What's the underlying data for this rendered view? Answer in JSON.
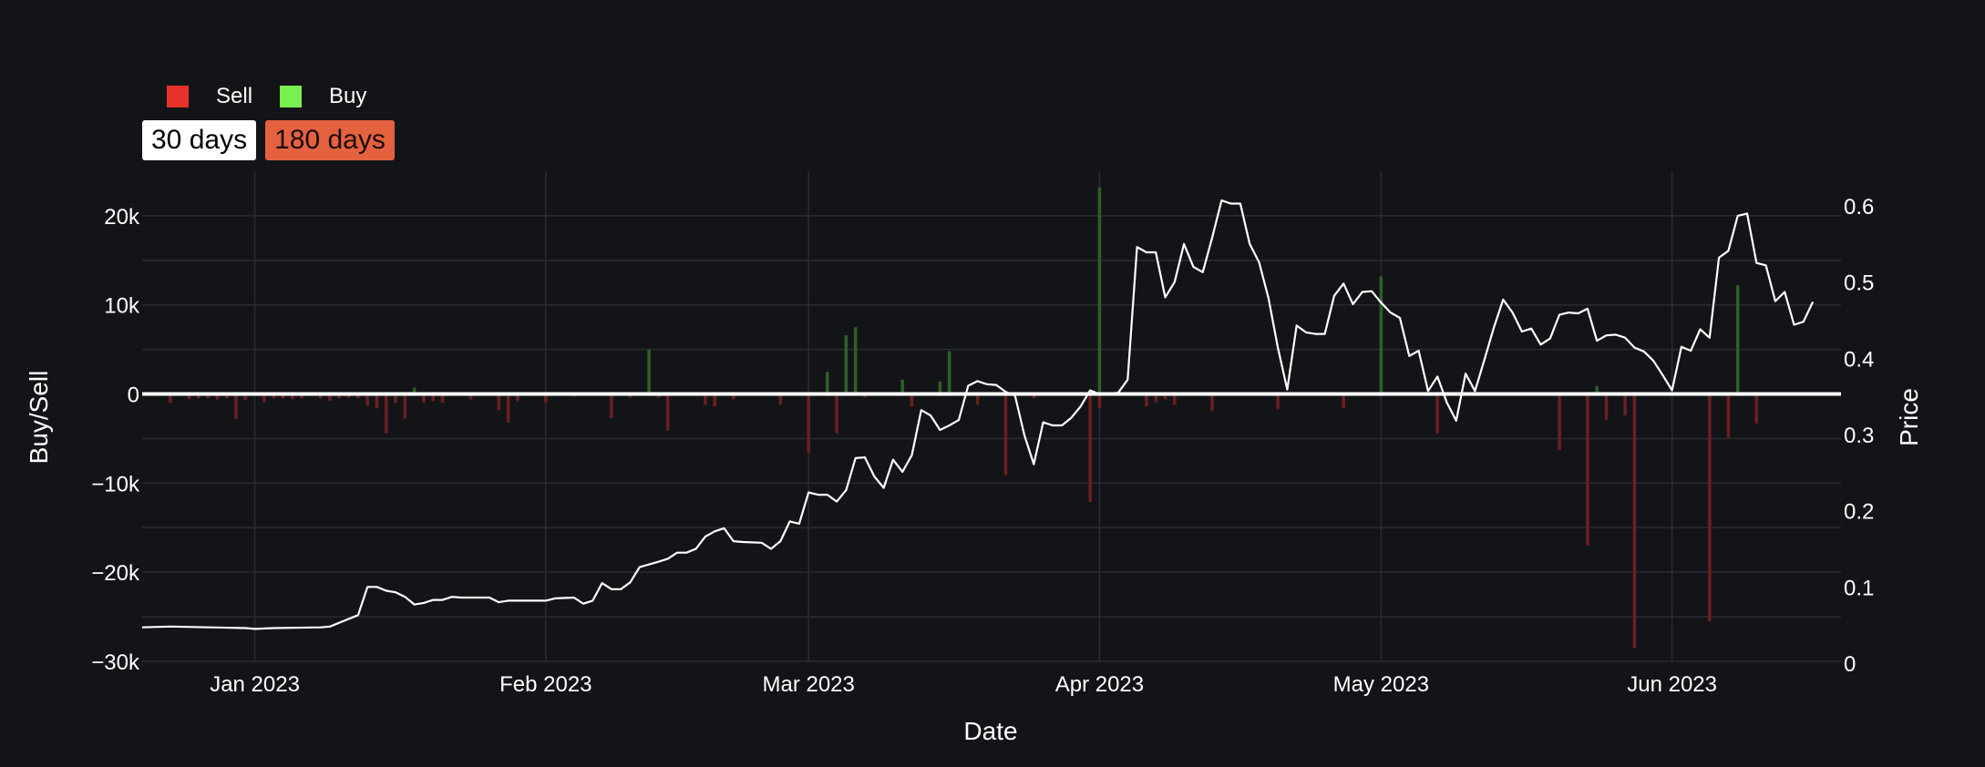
{
  "legend": {
    "sell_label": "Sell",
    "buy_label": "Buy",
    "sell_color": "#e8332a",
    "buy_color": "#79f04f"
  },
  "range_buttons": {
    "b30": "30 days",
    "b180": "180 days",
    "active_color": "#ffffff",
    "inactive_color": "#e4623f"
  },
  "chart_data": {
    "type": "bar",
    "xlabel": "Date",
    "ylabel_left": "Buy/Sell",
    "ylabel_right": "Price",
    "x_range": [
      "2022-12-20",
      "2023-06-19"
    ],
    "left_ylim": [
      -30000,
      25000
    ],
    "right_ylim": [
      0,
      0.65
    ],
    "grid": true,
    "legend_position": "top-left",
    "x_ticks": [
      {
        "date": "2023-01-01",
        "label": "Jan 2023"
      },
      {
        "date": "2023-02-01",
        "label": "Feb 2023"
      },
      {
        "date": "2023-03-01",
        "label": "Mar 2023"
      },
      {
        "date": "2023-04-01",
        "label": "Apr 2023"
      },
      {
        "date": "2023-05-01",
        "label": "May 2023"
      },
      {
        "date": "2023-06-01",
        "label": "Jun 2023"
      }
    ],
    "left_ticks": [
      {
        "value": 20000,
        "label": "20k"
      },
      {
        "value": 10000,
        "label": "10k"
      },
      {
        "value": 0,
        "label": "0"
      },
      {
        "value": -10000,
        "label": "−10k"
      },
      {
        "value": -20000,
        "label": "−20k"
      },
      {
        "value": -30000,
        "label": "−30k"
      }
    ],
    "right_ticks": [
      {
        "value": 0.6,
        "label": "0.6"
      },
      {
        "value": 0.5,
        "label": "0.5"
      },
      {
        "value": 0.4,
        "label": "0.4"
      },
      {
        "value": 0.3,
        "label": "0.3"
      },
      {
        "value": 0.2,
        "label": "0.2"
      },
      {
        "value": 0.1,
        "label": "0.1"
      },
      {
        "value": 0,
        "label": "0"
      }
    ],
    "series": [
      {
        "name": "Sell",
        "color": "#e8332a",
        "points": [
          [
            "2022-12-23",
            -1000
          ],
          [
            "2022-12-25",
            -600
          ],
          [
            "2022-12-26",
            -500
          ],
          [
            "2022-12-27",
            -500
          ],
          [
            "2022-12-28",
            -600
          ],
          [
            "2022-12-29",
            -500
          ],
          [
            "2022-12-30",
            -2800
          ],
          [
            "2022-12-31",
            -700
          ],
          [
            "2023-01-02",
            -900
          ],
          [
            "2023-01-03",
            -500
          ],
          [
            "2023-01-04",
            -500
          ],
          [
            "2023-01-05",
            -600
          ],
          [
            "2023-01-06",
            -500
          ],
          [
            "2023-01-08",
            -500
          ],
          [
            "2023-01-09",
            -800
          ],
          [
            "2023-01-10",
            -500
          ],
          [
            "2023-01-11",
            -400
          ],
          [
            "2023-01-12",
            -500
          ],
          [
            "2023-01-13",
            -1300
          ],
          [
            "2023-01-14",
            -1600
          ],
          [
            "2023-01-15",
            -4400
          ],
          [
            "2023-01-16",
            -1000
          ],
          [
            "2023-01-17",
            -2800
          ],
          [
            "2023-01-19",
            -1000
          ],
          [
            "2023-01-20",
            -800
          ],
          [
            "2023-01-21",
            -1000
          ],
          [
            "2023-01-24",
            -600
          ],
          [
            "2023-01-27",
            -1800
          ],
          [
            "2023-01-28",
            -3200
          ],
          [
            "2023-01-29",
            -800
          ],
          [
            "2023-02-01",
            -1000
          ],
          [
            "2023-02-04",
            -300
          ],
          [
            "2023-02-08",
            -2700
          ],
          [
            "2023-02-10",
            -400
          ],
          [
            "2023-02-13",
            -400
          ],
          [
            "2023-02-14",
            -4100
          ],
          [
            "2023-02-18",
            -1200
          ],
          [
            "2023-02-19",
            -1400
          ],
          [
            "2023-02-21",
            -600
          ],
          [
            "2023-02-26",
            -1200
          ],
          [
            "2023-03-01",
            -6600
          ],
          [
            "2023-03-04",
            -4400
          ],
          [
            "2023-03-07",
            -400
          ],
          [
            "2023-03-12",
            -1400
          ],
          [
            "2023-03-19",
            -1200
          ],
          [
            "2023-03-22",
            -9100
          ],
          [
            "2023-03-25",
            -500
          ],
          [
            "2023-03-31",
            -12100
          ],
          [
            "2023-04-01",
            -1600
          ],
          [
            "2023-04-06",
            -1400
          ],
          [
            "2023-04-07",
            -900
          ],
          [
            "2023-04-08",
            -600
          ],
          [
            "2023-04-09",
            -1200
          ],
          [
            "2023-04-13",
            -1900
          ],
          [
            "2023-04-20",
            -1700
          ],
          [
            "2023-04-27",
            -1600
          ],
          [
            "2023-05-07",
            -4400
          ],
          [
            "2023-05-20",
            -6300
          ],
          [
            "2023-05-23",
            -17000
          ],
          [
            "2023-05-25",
            -2900
          ],
          [
            "2023-05-27",
            -2400
          ],
          [
            "2023-05-28",
            -28500
          ],
          [
            "2023-06-05",
            -25500
          ],
          [
            "2023-06-07",
            -4900
          ],
          [
            "2023-06-10",
            -3300
          ]
        ]
      },
      {
        "name": "Buy",
        "color": "#79f04f",
        "points": [
          [
            "2023-01-18",
            700
          ],
          [
            "2023-02-12",
            5000
          ],
          [
            "2023-03-03",
            2500
          ],
          [
            "2023-03-05",
            6600
          ],
          [
            "2023-03-06",
            7500
          ],
          [
            "2023-03-11",
            1600
          ],
          [
            "2023-03-15",
            1400
          ],
          [
            "2023-03-16",
            4800
          ],
          [
            "2023-04-01",
            23200
          ],
          [
            "2023-05-01",
            13200
          ],
          [
            "2023-05-24",
            900
          ],
          [
            "2023-06-08",
            12200
          ]
        ]
      }
    ],
    "price": {
      "color": "#ffffff",
      "points": [
        [
          "2022-12-20",
          0.047
        ],
        [
          "2022-12-23",
          0.048
        ],
        [
          "2022-12-31",
          0.046
        ],
        [
          "2023-01-01",
          0.045
        ],
        [
          "2023-01-03",
          0.046
        ],
        [
          "2023-01-08",
          0.047
        ],
        [
          "2023-01-09",
          0.048
        ],
        [
          "2023-01-12",
          0.063
        ],
        [
          "2023-01-13",
          0.1
        ],
        [
          "2023-01-14",
          0.1
        ],
        [
          "2023-01-15",
          0.095
        ],
        [
          "2023-01-16",
          0.093
        ],
        [
          "2023-01-17",
          0.087
        ],
        [
          "2023-01-18",
          0.077
        ],
        [
          "2023-01-19",
          0.079
        ],
        [
          "2023-01-20",
          0.083
        ],
        [
          "2023-01-21",
          0.083
        ],
        [
          "2023-01-22",
          0.087
        ],
        [
          "2023-01-23",
          0.086
        ],
        [
          "2023-01-26",
          0.086
        ],
        [
          "2023-01-27",
          0.08
        ],
        [
          "2023-01-28",
          0.082
        ],
        [
          "2023-02-01",
          0.082
        ],
        [
          "2023-02-02",
          0.085
        ],
        [
          "2023-02-04",
          0.086
        ],
        [
          "2023-02-05",
          0.078
        ],
        [
          "2023-02-06",
          0.082
        ],
        [
          "2023-02-07",
          0.105
        ],
        [
          "2023-02-08",
          0.097
        ],
        [
          "2023-02-09",
          0.097
        ],
        [
          "2023-02-10",
          0.106
        ],
        [
          "2023-02-11",
          0.126
        ],
        [
          "2023-02-13",
          0.133
        ],
        [
          "2023-02-14",
          0.137
        ],
        [
          "2023-02-15",
          0.145
        ],
        [
          "2023-02-16",
          0.145
        ],
        [
          "2023-02-17",
          0.15
        ],
        [
          "2023-02-18",
          0.166
        ],
        [
          "2023-02-19",
          0.173
        ],
        [
          "2023-02-20",
          0.177
        ],
        [
          "2023-02-21",
          0.16
        ],
        [
          "2023-02-22",
          0.159
        ],
        [
          "2023-02-24",
          0.158
        ],
        [
          "2023-02-25",
          0.15
        ],
        [
          "2023-02-26",
          0.16
        ],
        [
          "2023-02-27",
          0.186
        ],
        [
          "2023-02-28",
          0.183
        ],
        [
          "2023-03-01",
          0.224
        ],
        [
          "2023-03-02",
          0.221
        ],
        [
          "2023-03-03",
          0.221
        ],
        [
          "2023-03-04",
          0.212
        ],
        [
          "2023-03-05",
          0.227
        ],
        [
          "2023-03-06",
          0.269
        ],
        [
          "2023-03-07",
          0.27
        ],
        [
          "2023-03-08",
          0.245
        ],
        [
          "2023-03-09",
          0.23
        ],
        [
          "2023-03-10",
          0.267
        ],
        [
          "2023-03-11",
          0.251
        ],
        [
          "2023-03-12",
          0.273
        ],
        [
          "2023-03-13",
          0.332
        ],
        [
          "2023-03-14",
          0.325
        ],
        [
          "2023-03-15",
          0.306
        ],
        [
          "2023-03-16",
          0.312
        ],
        [
          "2023-03-17",
          0.319
        ],
        [
          "2023-03-18",
          0.364
        ],
        [
          "2023-03-19",
          0.37
        ],
        [
          "2023-03-20",
          0.366
        ],
        [
          "2023-03-21",
          0.365
        ],
        [
          "2023-03-22",
          0.356
        ],
        [
          "2023-03-23",
          0.351
        ],
        [
          "2023-03-24",
          0.299
        ],
        [
          "2023-03-25",
          0.261
        ],
        [
          "2023-03-26",
          0.316
        ],
        [
          "2023-03-27",
          0.312
        ],
        [
          "2023-03-28",
          0.312
        ],
        [
          "2023-03-29",
          0.322
        ],
        [
          "2023-03-30",
          0.337
        ],
        [
          "2023-03-31",
          0.358
        ],
        [
          "2023-04-01",
          0.353
        ],
        [
          "2023-04-02",
          0.353
        ],
        [
          "2023-04-03",
          0.355
        ],
        [
          "2023-04-04",
          0.372
        ],
        [
          "2023-04-05",
          0.546
        ],
        [
          "2023-04-06",
          0.539
        ],
        [
          "2023-04-07",
          0.539
        ],
        [
          "2023-04-08",
          0.48
        ],
        [
          "2023-04-09",
          0.5
        ],
        [
          "2023-04-10",
          0.55
        ],
        [
          "2023-04-11",
          0.52
        ],
        [
          "2023-04-12",
          0.513
        ],
        [
          "2023-04-13",
          0.558
        ],
        [
          "2023-04-14",
          0.607
        ],
        [
          "2023-04-15",
          0.603
        ],
        [
          "2023-04-16",
          0.603
        ],
        [
          "2023-04-17",
          0.55
        ],
        [
          "2023-04-18",
          0.526
        ],
        [
          "2023-04-19",
          0.479
        ],
        [
          "2023-04-20",
          0.414
        ],
        [
          "2023-04-21",
          0.359
        ],
        [
          "2023-04-22",
          0.443
        ],
        [
          "2023-04-23",
          0.434
        ],
        [
          "2023-04-24",
          0.432
        ],
        [
          "2023-04-25",
          0.432
        ],
        [
          "2023-04-26",
          0.482
        ],
        [
          "2023-04-27",
          0.498
        ],
        [
          "2023-04-28",
          0.471
        ],
        [
          "2023-04-29",
          0.487
        ],
        [
          "2023-04-30",
          0.488
        ],
        [
          "2023-05-01",
          0.473
        ],
        [
          "2023-05-02",
          0.46
        ],
        [
          "2023-05-03",
          0.453
        ],
        [
          "2023-05-04",
          0.403
        ],
        [
          "2023-05-05",
          0.41
        ],
        [
          "2023-05-06",
          0.357
        ],
        [
          "2023-05-07",
          0.376
        ],
        [
          "2023-05-08",
          0.342
        ],
        [
          "2023-05-09",
          0.318
        ],
        [
          "2023-05-10",
          0.38
        ],
        [
          "2023-05-11",
          0.357
        ],
        [
          "2023-05-12",
          0.398
        ],
        [
          "2023-05-13",
          0.44
        ],
        [
          "2023-05-14",
          0.477
        ],
        [
          "2023-05-15",
          0.46
        ],
        [
          "2023-05-16",
          0.435
        ],
        [
          "2023-05-17",
          0.439
        ],
        [
          "2023-05-18",
          0.418
        ],
        [
          "2023-05-19",
          0.426
        ],
        [
          "2023-05-20",
          0.457
        ],
        [
          "2023-05-21",
          0.46
        ],
        [
          "2023-05-22",
          0.459
        ],
        [
          "2023-05-23",
          0.465
        ],
        [
          "2023-05-24",
          0.423
        ],
        [
          "2023-05-25",
          0.43
        ],
        [
          "2023-05-26",
          0.431
        ],
        [
          "2023-05-27",
          0.427
        ],
        [
          "2023-05-28",
          0.414
        ],
        [
          "2023-05-29",
          0.409
        ],
        [
          "2023-05-30",
          0.397
        ],
        [
          "2023-05-31",
          0.378
        ],
        [
          "2023-06-01",
          0.358
        ],
        [
          "2023-06-02",
          0.415
        ],
        [
          "2023-06-03",
          0.41
        ],
        [
          "2023-06-04",
          0.438
        ],
        [
          "2023-06-05",
          0.427
        ],
        [
          "2023-06-06",
          0.532
        ],
        [
          "2023-06-07",
          0.541
        ],
        [
          "2023-06-08",
          0.587
        ],
        [
          "2023-06-09",
          0.59
        ],
        [
          "2023-06-10",
          0.525
        ],
        [
          "2023-06-11",
          0.522
        ],
        [
          "2023-06-12",
          0.475
        ],
        [
          "2023-06-13",
          0.487
        ],
        [
          "2023-06-14",
          0.444
        ],
        [
          "2023-06-15",
          0.448
        ],
        [
          "2023-06-16",
          0.474
        ]
      ]
    }
  }
}
